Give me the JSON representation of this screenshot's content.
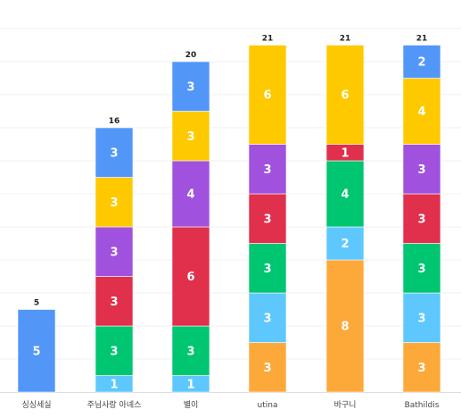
{
  "chart_data": {
    "type": "bar",
    "stacked": true,
    "categories": [
      "싱싱세실",
      "주님사랑 아녜스",
      "별이",
      "utina",
      "바구니",
      "Bathildis"
    ],
    "totals": [
      5,
      16,
      20,
      21,
      21,
      21
    ],
    "series": [
      {
        "color": "#fda93a",
        "values": [
          0,
          0,
          0,
          3,
          8,
          3
        ]
      },
      {
        "color": "#5ec8fe",
        "values": [
          0,
          1,
          1,
          3,
          2,
          3
        ]
      },
      {
        "color": "#00c671",
        "values": [
          0,
          3,
          3,
          3,
          4,
          3
        ]
      },
      {
        "color": "#e0304c",
        "values": [
          0,
          3,
          6,
          3,
          1,
          3
        ]
      },
      {
        "color": "#a052de",
        "values": [
          0,
          3,
          4,
          3,
          0,
          3
        ]
      },
      {
        "color": "#ffc900",
        "values": [
          0,
          3,
          3,
          6,
          6,
          4
        ]
      },
      {
        "color": "#5296f8",
        "values": [
          5,
          3,
          3,
          0,
          0,
          2
        ]
      }
    ],
    "ylim": [
      0,
      22
    ],
    "grid": true,
    "legend": "none"
  }
}
